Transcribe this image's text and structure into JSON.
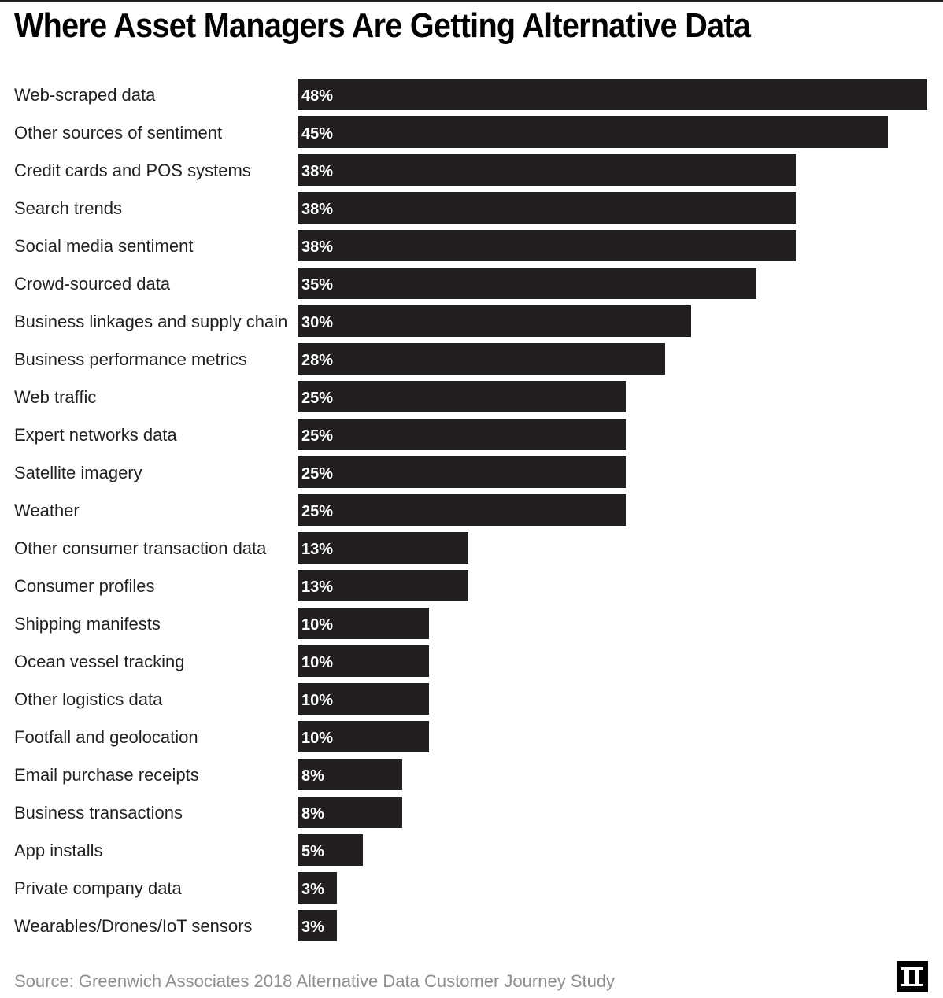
{
  "header": {
    "title": "Where Asset Managers Are Getting Alternative Data"
  },
  "footer": {
    "source": "Source: Greenwich Associates 2018 Alternative Data Customer Journey Study"
  },
  "colors": {
    "bar": "#231f20",
    "label": "#231f20",
    "value_text": "#ffffff",
    "source_text": "#8e8e8e"
  },
  "logo_icon": "ii-logo-icon",
  "chart_data": {
    "type": "bar",
    "orientation": "horizontal",
    "title": "Where Asset Managers Are Getting Alternative Data",
    "xlim": [
      0,
      48
    ],
    "grid": false,
    "value_suffix": "%",
    "categories": [
      "Web-scraped data",
      "Other sources of sentiment",
      "Credit cards and POS systems",
      "Search trends",
      "Social media sentiment",
      "Crowd-sourced data",
      "Business linkages and supply chain",
      "Business performance metrics",
      "Web traffic",
      "Expert networks data",
      "Satellite imagery",
      "Weather",
      "Other consumer transaction data",
      "Consumer profiles",
      "Shipping manifests",
      "Ocean vessel tracking",
      "Other logistics data",
      "Footfall and geolocation",
      "Email purchase receipts",
      "Business transactions",
      "App installs",
      "Private company data",
      "Wearables/Drones/IoT sensors"
    ],
    "values": [
      48,
      45,
      38,
      38,
      38,
      35,
      30,
      28,
      25,
      25,
      25,
      25,
      13,
      13,
      10,
      10,
      10,
      10,
      8,
      8,
      5,
      3,
      3
    ],
    "labels": [
      "48%",
      "45%",
      "38%",
      "38%",
      "38%",
      "35%",
      "30%",
      "28%",
      "25%",
      "25%",
      "25%",
      "25%",
      "13%",
      "13%",
      "10%",
      "10%",
      "10%",
      "10%",
      "8%",
      "8%",
      "5%",
      "3%",
      "3%"
    ]
  }
}
